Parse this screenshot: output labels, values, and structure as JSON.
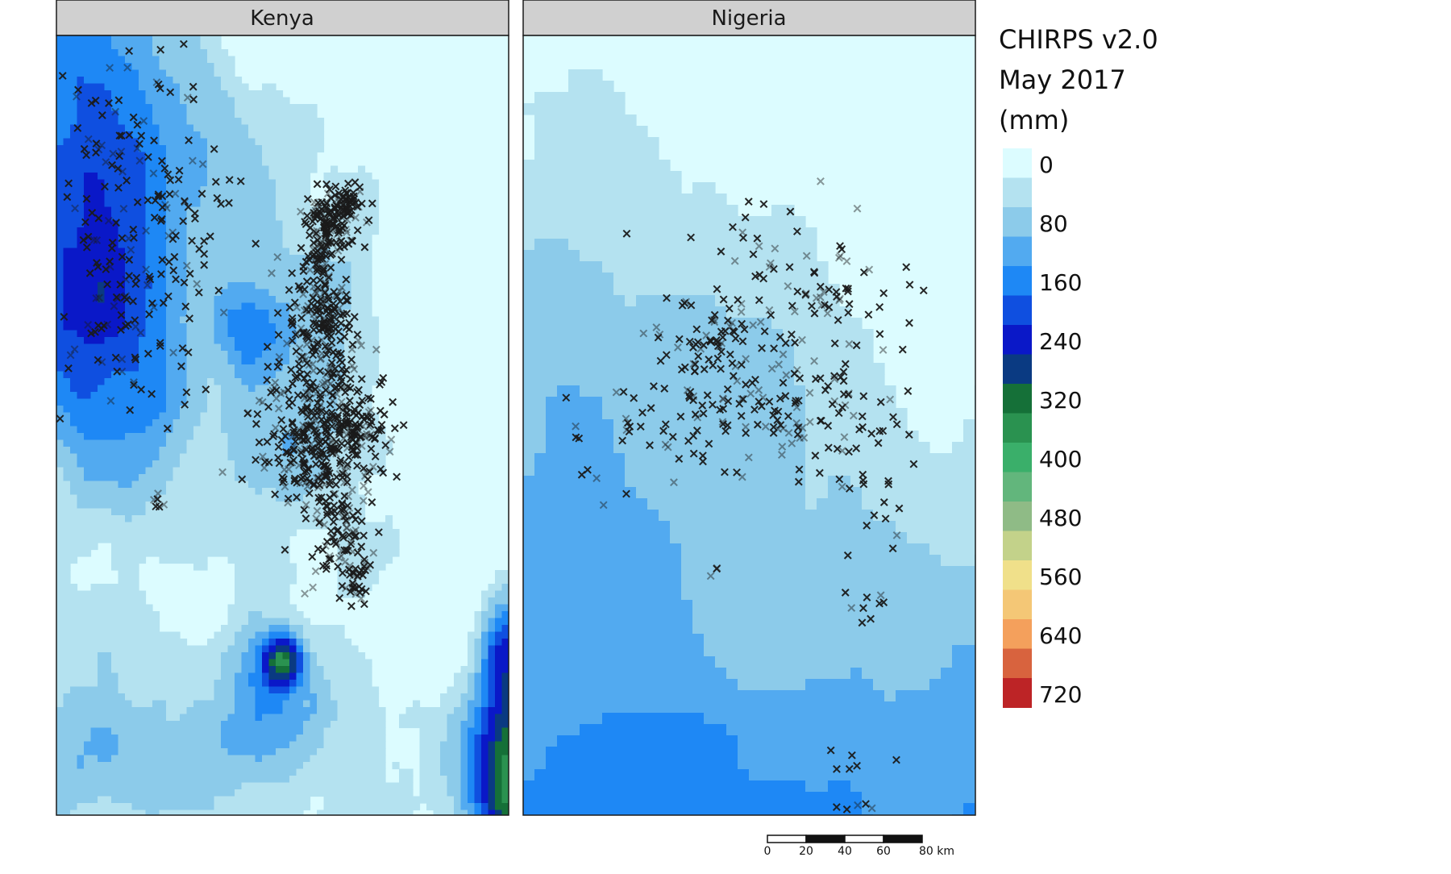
{
  "panels": [
    {
      "id": "kenya",
      "title": "Kenya"
    },
    {
      "id": "nigeria",
      "title": "Nigeria"
    }
  ],
  "legend": {
    "title_lines": [
      "CHIRPS v2.0",
      "May 2017",
      "(mm)"
    ],
    "breaks": [
      {
        "color": "#dcfcff",
        "label": "0"
      },
      {
        "color": "#b4e2f0",
        "label": ""
      },
      {
        "color": "#8ccbea",
        "label": "80"
      },
      {
        "color": "#52aaf0",
        "label": ""
      },
      {
        "color": "#1e88f5",
        "label": "160"
      },
      {
        "color": "#0f4fe0",
        "label": ""
      },
      {
        "color": "#0a18c8",
        "label": "240"
      },
      {
        "color": "#0a3a82",
        "label": ""
      },
      {
        "color": "#157038",
        "label": "320"
      },
      {
        "color": "#2a9250",
        "label": ""
      },
      {
        "color": "#3aaf6a",
        "label": "400"
      },
      {
        "color": "#62b67c",
        "label": ""
      },
      {
        "color": "#8fbb86",
        "label": "480"
      },
      {
        "color": "#c3d28a",
        "label": ""
      },
      {
        "color": "#f0e08a",
        "label": "560"
      },
      {
        "color": "#f4c776",
        "label": ""
      },
      {
        "color": "#f4a05c",
        "label": "640"
      },
      {
        "color": "#d8633e",
        "label": ""
      },
      {
        "color": "#bd2426",
        "label": "720"
      }
    ]
  },
  "scalebar": {
    "ticks": [
      "0",
      "20",
      "40",
      "60",
      "80 km"
    ]
  },
  "marker_symbol": "cross-marker",
  "colors": {
    "panel_header_bg": "#d0d0d0",
    "frame": "#1a1a1a",
    "marker": "#1a1a1a"
  }
}
